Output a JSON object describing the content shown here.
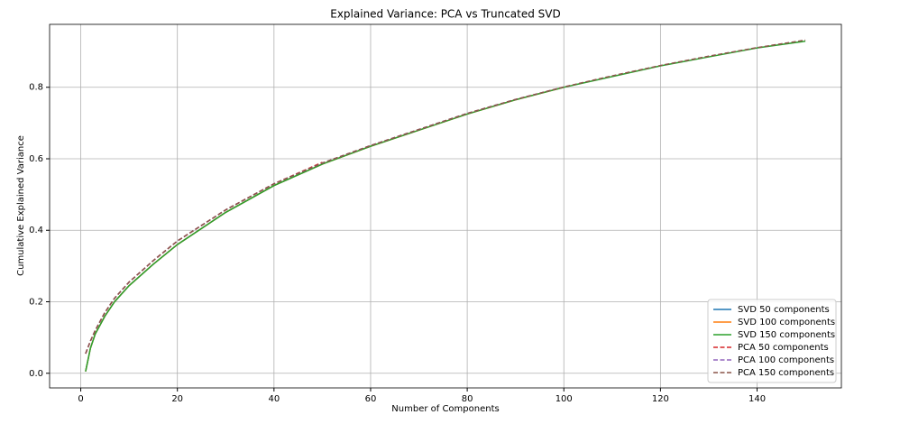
{
  "chart_data": {
    "type": "line",
    "title": "Explained Variance: PCA vs Truncated SVD",
    "xlabel": "Number of Components",
    "ylabel": "Cumulative Explained Variance",
    "xlim": [
      -6.45,
      157.45
    ],
    "ylim": [
      -0.041,
      0.976
    ],
    "xticks": [
      0,
      20,
      40,
      60,
      80,
      100,
      120,
      140
    ],
    "yticks": [
      {
        "value": 0,
        "label": "0.0"
      },
      0.2,
      0.4,
      0.6,
      0.8
    ],
    "grid": true,
    "legend": "lower right",
    "series": [
      {
        "name": "SVD 50 components",
        "color": "#1f77b4",
        "linestyle": "solid",
        "x": [
          1,
          2,
          3,
          5,
          7,
          10,
          15,
          20,
          30,
          40,
          50
        ],
        "values": [
          0.005,
          0.07,
          0.11,
          0.16,
          0.2,
          0.245,
          0.305,
          0.36,
          0.45,
          0.525,
          0.585
        ]
      },
      {
        "name": "SVD 100 components",
        "color": "#ff7f0e",
        "linestyle": "solid",
        "x": [
          1,
          2,
          3,
          5,
          7,
          10,
          15,
          20,
          30,
          40,
          50,
          60,
          70,
          80,
          90,
          100
        ],
        "values": [
          0.005,
          0.07,
          0.11,
          0.16,
          0.2,
          0.245,
          0.305,
          0.36,
          0.45,
          0.525,
          0.585,
          0.635,
          0.68,
          0.725,
          0.765,
          0.8
        ]
      },
      {
        "name": "SVD 150 components",
        "color": "#2ca02c",
        "linestyle": "solid",
        "x": [
          1,
          2,
          3,
          5,
          7,
          10,
          15,
          20,
          30,
          40,
          50,
          60,
          70,
          80,
          90,
          100,
          110,
          120,
          130,
          140,
          150
        ],
        "values": [
          0.005,
          0.07,
          0.11,
          0.16,
          0.2,
          0.245,
          0.305,
          0.36,
          0.45,
          0.525,
          0.585,
          0.635,
          0.68,
          0.725,
          0.765,
          0.8,
          0.83,
          0.86,
          0.885,
          0.91,
          0.929
        ]
      },
      {
        "name": "PCA 50 components",
        "color": "#d62728",
        "linestyle": "dashed",
        "x": [
          1,
          2,
          3,
          5,
          7,
          10,
          15,
          20,
          30,
          40,
          50
        ],
        "values": [
          0.055,
          0.09,
          0.12,
          0.17,
          0.21,
          0.255,
          0.315,
          0.37,
          0.457,
          0.53,
          0.59
        ]
      },
      {
        "name": "PCA 100 components",
        "color": "#9467bd",
        "linestyle": "dashed",
        "x": [
          1,
          2,
          3,
          5,
          7,
          10,
          15,
          20,
          30,
          40,
          50,
          60,
          70,
          80,
          90,
          100
        ],
        "values": [
          0.055,
          0.09,
          0.12,
          0.17,
          0.21,
          0.255,
          0.315,
          0.37,
          0.457,
          0.53,
          0.588,
          0.637,
          0.682,
          0.727,
          0.766,
          0.801
        ]
      },
      {
        "name": "PCA 150 components",
        "color": "#8c564b",
        "linestyle": "dashed",
        "x": [
          1,
          2,
          3,
          5,
          7,
          10,
          15,
          20,
          30,
          40,
          50,
          60,
          70,
          80,
          90,
          100,
          110,
          120,
          130,
          140,
          150
        ],
        "values": [
          0.055,
          0.09,
          0.12,
          0.17,
          0.21,
          0.255,
          0.315,
          0.37,
          0.457,
          0.53,
          0.588,
          0.637,
          0.682,
          0.727,
          0.766,
          0.801,
          0.832,
          0.861,
          0.887,
          0.911,
          0.932
        ]
      }
    ]
  }
}
